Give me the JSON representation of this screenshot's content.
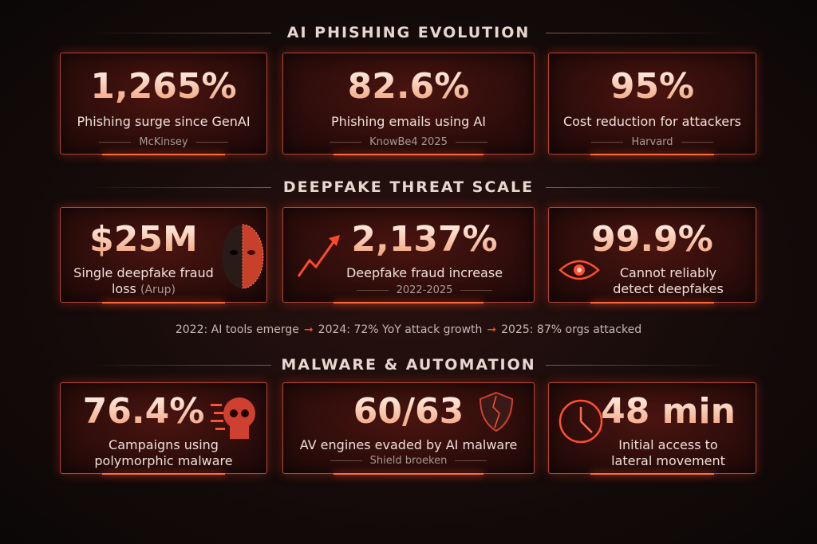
{
  "sections": [
    "AI PHISHING EVOLUTION",
    "DEEPFAKE THREAT SCALE",
    "MALWARE & AUTOMATION"
  ],
  "accent": "#ff5030",
  "phishing": [
    {
      "value": "1,265%",
      "desc": "Phishing surge since GenAI",
      "source": "McKinsey"
    },
    {
      "value": "82.6%",
      "desc": "Phishing emails using AI",
      "source": "KnowBe4 2025"
    },
    {
      "value": "95%",
      "desc": "Cost reduction for attackers",
      "source": "Harvard"
    }
  ],
  "deepfake": [
    {
      "value": "$25M",
      "desc": "Single deepfake fraud",
      "desc2": "loss",
      "source": "(Arup)",
      "icon": "half-digital-face-icon"
    },
    {
      "value": "2,137%",
      "desc": "Deepfake fraud increase",
      "source": "2022-2025",
      "icon": "rising-arrow-icon"
    },
    {
      "value": "99.9%",
      "desc": "Cannot reliably",
      "desc2": "detect deepfakes",
      "icon": "eye-icon"
    }
  ],
  "timeline": [
    "2022: AI tools emerge",
    "2024: 72% YoY attack growth",
    "2025: 87% orgs attacked"
  ],
  "malware": [
    {
      "value": "76.4%",
      "desc": "Campaigns using",
      "desc2": "polymorphic malware",
      "icon": "digital-skull-icon"
    },
    {
      "value": "60/63",
      "desc": "AV engines evaded by AI malware",
      "source": "Shield broeken",
      "icon": "broken-shield-icon"
    },
    {
      "value": "48 min",
      "desc": "Initial access to",
      "desc2": "lateral movement",
      "icon": "clock-icon"
    }
  ]
}
